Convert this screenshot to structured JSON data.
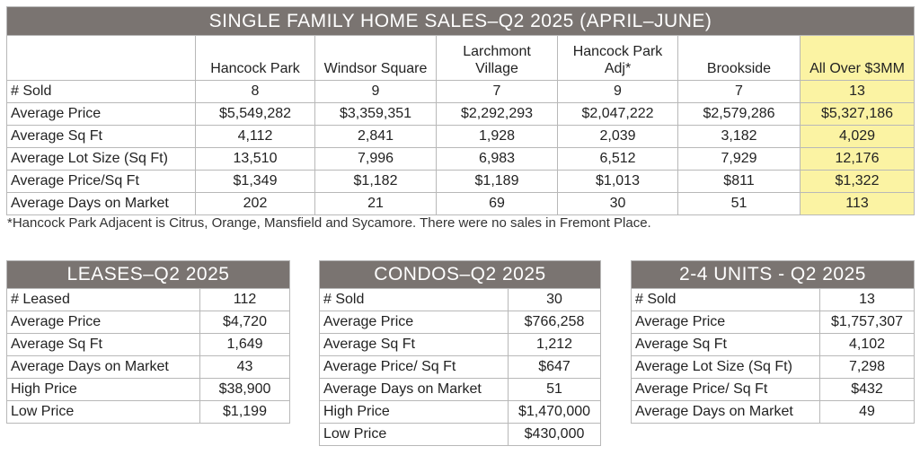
{
  "main": {
    "title": "SINGLE FAMILY HOME SALES–Q2 2025 (APRIL–JUNE)",
    "columns": [
      [
        "Hancock Park"
      ],
      [
        "Windsor Square"
      ],
      [
        "Larchmont",
        "Village"
      ],
      [
        "Hancock Park",
        "Adj*"
      ],
      [
        "Brookside"
      ],
      [
        "All Over $3MM"
      ]
    ],
    "rows": [
      {
        "label": "# Sold",
        "values": [
          "8",
          "9",
          "7",
          "9",
          "7",
          "13"
        ]
      },
      {
        "label": "Average Price",
        "values": [
          "$5,549,282",
          "$3,359,351",
          "$2,292,293",
          "$2,047,222",
          "$2,579,286",
          "$5,327,186"
        ]
      },
      {
        "label": "Average Sq Ft",
        "values": [
          "4,112",
          "2,841",
          "1,928",
          "2,039",
          "3,182",
          "4,029"
        ]
      },
      {
        "label": "Average Lot Size (Sq Ft)",
        "values": [
          "13,510",
          "7,996",
          "6,983",
          "6,512",
          "7,929",
          "12,176"
        ]
      },
      {
        "label": "Average Price/Sq Ft",
        "values": [
          "$1,349",
          "$1,182",
          "$1,189",
          "$1,013",
          "$811",
          "$1,322"
        ]
      },
      {
        "label": "Average Days on Market",
        "values": [
          "202",
          "21",
          "69",
          "30",
          "51",
          "113"
        ]
      }
    ],
    "highlight_color": "#fbf3a3"
  },
  "footnote": "*Hancock Park Adjacent is Citrus, Orange, Mansfield and Sycamore. There were no sales in Fremont Place.",
  "leases": {
    "title": "LEASES–Q2 2025",
    "rows": [
      {
        "label": "# Leased",
        "value": "112"
      },
      {
        "label": "Average Price",
        "value": "$4,720"
      },
      {
        "label": "Average Sq Ft",
        "value": "1,649"
      },
      {
        "label": "Average Days on Market",
        "value": "43"
      },
      {
        "label": "High Price",
        "value": "$38,900"
      },
      {
        "label": "Low Price",
        "value": "$1,199"
      }
    ]
  },
  "condos": {
    "title": "CONDOS–Q2 2025",
    "rows": [
      {
        "label": "# Sold",
        "value": "30"
      },
      {
        "label": "Average Price",
        "value": "$766,258"
      },
      {
        "label": "Average Sq Ft",
        "value": "1,212"
      },
      {
        "label": "Average Price/ Sq Ft",
        "value": "$647"
      },
      {
        "label": "Average Days on Market",
        "value": "51"
      },
      {
        "label": "High Price",
        "value": "$1,470,000"
      },
      {
        "label": "Low Price",
        "value": "$430,000"
      }
    ]
  },
  "units": {
    "title": "2-4 UNITS - Q2 2025",
    "rows": [
      {
        "label": "# Sold",
        "value": "13"
      },
      {
        "label": "Average Price",
        "value": "$1,757,307"
      },
      {
        "label": "Average Sq Ft",
        "value": "4,102"
      },
      {
        "label": "Average Lot Size (Sq Ft)",
        "value": "7,298"
      },
      {
        "label": "Average Price/ Sq Ft",
        "value": "$432"
      },
      {
        "label": "Average Days on Market",
        "value": "49"
      }
    ]
  },
  "colors": {
    "header_bg": "#7a7471",
    "border": "#b8b8b8"
  }
}
